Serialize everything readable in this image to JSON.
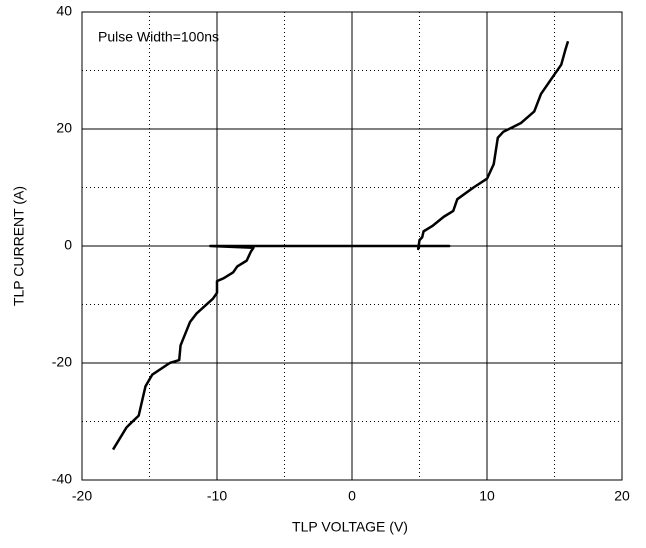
{
  "chart_data": {
    "type": "line",
    "xlabel": "TLP VOLTAGE   (V)",
    "ylabel": "TLP CURRENT  (A)",
    "annotation": "Pulse Width=100ns",
    "x": [
      -17.7,
      -16.7,
      -15.8,
      -15.3,
      -14.8,
      -13.5,
      -12.8,
      -12.7,
      -12,
      -11.5,
      -10.3,
      -10,
      -10,
      -9.5,
      -8.8,
      -8.5,
      -7.8,
      -7.5,
      -7.3,
      -10.5,
      7.2,
      5,
      4.9,
      5,
      5.2,
      5.3,
      6,
      6.8,
      7.5,
      7.8,
      9,
      10,
      10.5,
      10.8,
      11.2,
      12.5,
      13.5,
      14,
      14.6,
      15.5,
      15.8,
      16
    ],
    "values": [
      -34.8,
      -31,
      -29,
      -24,
      -22,
      -20,
      -19.5,
      -17,
      -13,
      -11.5,
      -9,
      -8,
      -6,
      -5.5,
      -4.5,
      -3.5,
      -2.5,
      -1,
      -0.3,
      0,
      0,
      0,
      -0.5,
      1,
      1.5,
      2.5,
      3.5,
      5,
      6,
      8,
      10,
      11.5,
      14,
      18.5,
      19.5,
      21,
      23,
      26,
      28,
      31,
      33.5,
      35
    ],
    "color": "#000000",
    "xlim": [
      -20,
      20
    ],
    "xticks": [
      -20,
      -10,
      0,
      10,
      20
    ],
    "minor_xticks": [
      -15,
      -5,
      5,
      15
    ],
    "ylim": [
      -40,
      40
    ],
    "yticks": [
      -40,
      -20,
      0,
      20,
      40
    ],
    "minor_yticks": [
      -30,
      -10,
      10,
      30
    ],
    "grid": true
  }
}
